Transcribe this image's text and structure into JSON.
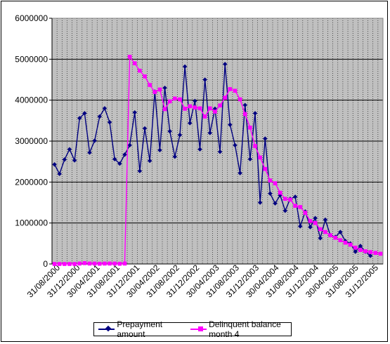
{
  "chart_data": {
    "type": "line",
    "title": "",
    "xlabel": "",
    "ylabel": "",
    "ylim": [
      0,
      6000000
    ],
    "yticks": [
      "0",
      "1000000",
      "2000000",
      "3000000",
      "4000000",
      "5000000",
      "6000000"
    ],
    "xtick_labels": [
      "31/08/2000",
      "31/12/2000",
      "30/04/2001",
      "31/08/2001",
      "31/12/2001",
      "30/04/2002",
      "31/08/2002",
      "31/12/2002",
      "30/04/2003",
      "31/08/2003",
      "31/12/2003",
      "30/04/2004",
      "31/08/2004",
      "31/12/2004",
      "30/04/2005",
      "31/08/2005",
      "31/12/2005"
    ],
    "grid": true,
    "legend_position": "bottom",
    "plot_background": "#c0c0c0",
    "series": [
      {
        "name": "Prepayment amount",
        "color": "#000080",
        "marker": "diamond",
        "values": [
          2430000,
          2200000,
          2550000,
          2800000,
          2530000,
          3560000,
          3680000,
          2720000,
          3010000,
          3600000,
          3800000,
          3460000,
          2560000,
          2450000,
          2670000,
          2900000,
          3700000,
          2270000,
          3310000,
          2520000,
          4210000,
          2780000,
          4300000,
          3240000,
          2620000,
          3150000,
          4820000,
          3440000,
          3980000,
          2800000,
          4500000,
          3200000,
          3790000,
          2740000,
          4880000,
          3400000,
          2900000,
          2220000,
          3880000,
          2560000,
          3680000,
          1500000,
          3060000,
          1720000,
          1480000,
          1680000,
          1300000,
          1590000,
          1640000,
          920000,
          1280000,
          900000,
          1120000,
          630000,
          1080000,
          700000,
          660000,
          780000,
          560000,
          500000,
          300000,
          440000,
          300000,
          200000
        ]
      },
      {
        "name": "Delinquent balance month 4",
        "color": "#ff00ff",
        "marker": "square",
        "values": [
          0,
          0,
          0,
          0,
          0,
          10000,
          20000,
          10000,
          10000,
          5000,
          10000,
          10000,
          10000,
          5000,
          10000,
          5060000,
          4900000,
          4720000,
          4580000,
          4370000,
          4200000,
          4260000,
          3780000,
          3970000,
          4040000,
          4020000,
          3790000,
          3850000,
          3820000,
          3800000,
          3600000,
          3800000,
          3720000,
          3870000,
          4060000,
          4270000,
          4230000,
          4020000,
          3660000,
          3330000,
          2880000,
          2600000,
          2320000,
          2040000,
          1970000,
          1740000,
          1590000,
          1570000,
          1420000,
          1390000,
          1250000,
          1050000,
          1000000,
          850000,
          780000,
          700000,
          640000,
          580000,
          520000,
          470000,
          400000,
          340000,
          310000,
          290000,
          270000,
          250000
        ]
      }
    ]
  },
  "legend": {
    "items": [
      {
        "label": "Prepayment amount",
        "color": "#000080"
      },
      {
        "label": "Delinquent balance month 4",
        "color": "#ff00ff"
      }
    ]
  }
}
